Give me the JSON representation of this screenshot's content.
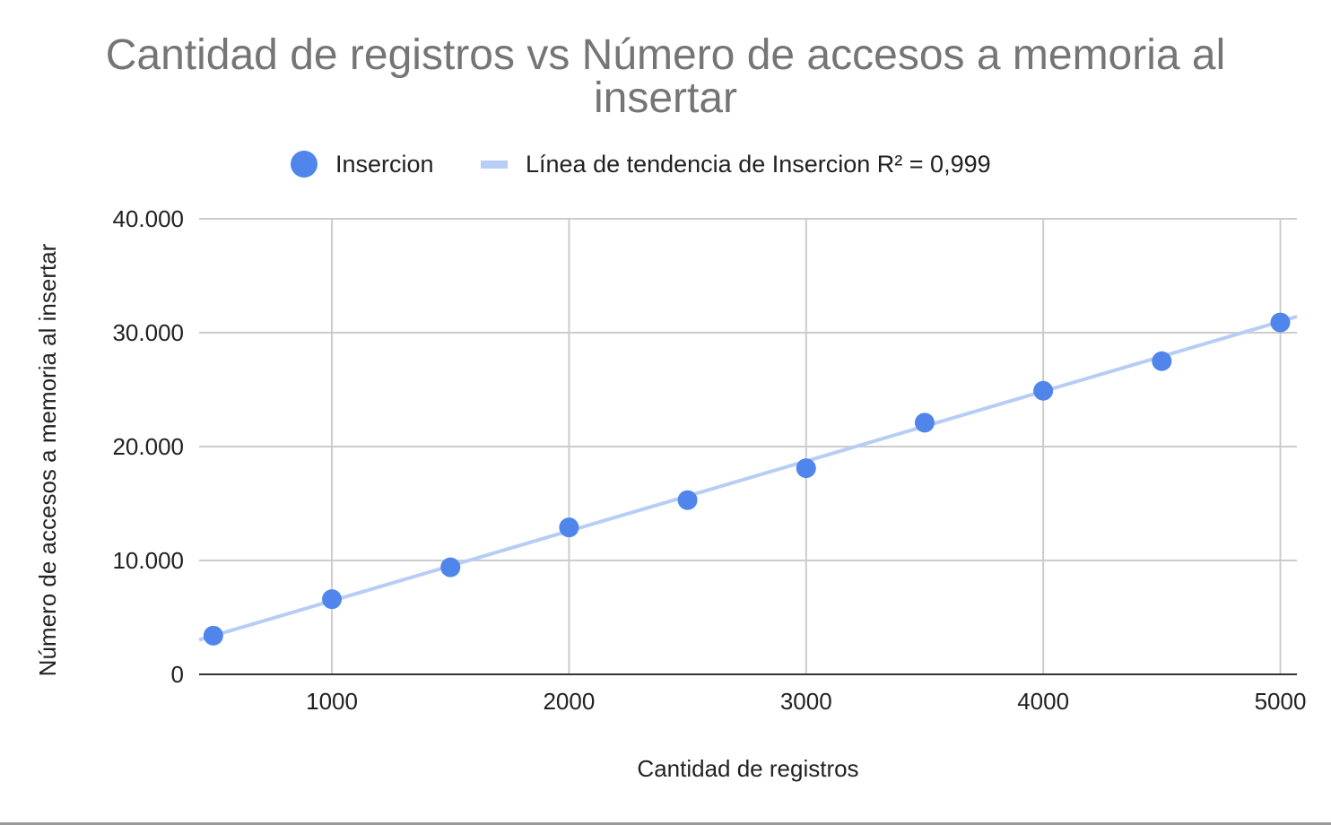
{
  "chart_data": {
    "type": "scatter",
    "title": "Cantidad de registros vs Número de accesos a memoria al insertar",
    "xlabel": "Cantidad de registros",
    "ylabel": "Número de accesos a memoria al insertar",
    "xlim": [
      440,
      5070
    ],
    "ylim": [
      0,
      40000
    ],
    "x_ticks": [
      "1000",
      "2000",
      "3000",
      "4000",
      "5000"
    ],
    "y_ticks": [
      "0",
      "10.000",
      "20.000",
      "30.000",
      "40.000"
    ],
    "grid": true,
    "legend_position": "top",
    "series": [
      {
        "name": "Insercion",
        "color": "#5086ec",
        "x": [
          500,
          1000,
          1500,
          2000,
          2500,
          3000,
          3500,
          4000,
          4500,
          5000
        ],
        "y": [
          3400,
          6600,
          9400,
          12900,
          15300,
          18100,
          22100,
          24900,
          27500,
          30900
        ]
      }
    ],
    "trendline": {
      "name": "Línea de tendencia de Insercion R² = 0,999",
      "color": "#b7cdf6",
      "slope": 6.13,
      "intercept": 330
    }
  }
}
